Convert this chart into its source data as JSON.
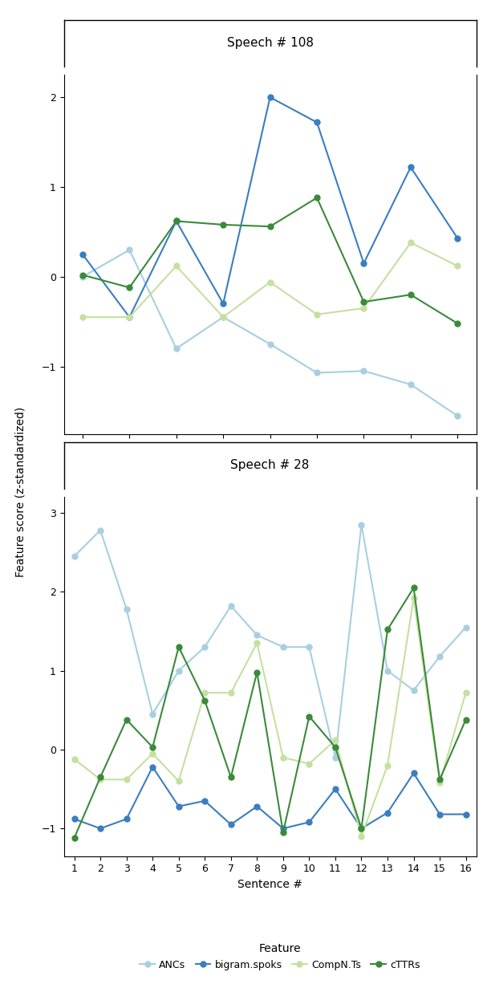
{
  "speech108": {
    "title": "Speech # 108",
    "x": [
      1,
      2,
      3,
      4,
      5,
      6,
      7,
      8,
      9
    ],
    "ANCs": [
      0.0,
      0.3,
      -0.8,
      -0.45,
      -0.75,
      -1.07,
      -1.05,
      -1.2,
      -1.55
    ],
    "bigram_spoks": [
      0.25,
      -0.45,
      0.62,
      -0.3,
      2.0,
      1.72,
      0.15,
      1.22,
      0.43
    ],
    "CompN_Ts": [
      -0.45,
      -0.45,
      0.12,
      -0.45,
      -0.06,
      -0.42,
      -0.35,
      0.38,
      0.12
    ],
    "cTTRs": [
      0.02,
      -0.12,
      0.62,
      0.58,
      0.56,
      0.88,
      -0.28,
      -0.2,
      -0.52
    ],
    "ylim": [
      -1.75,
      2.25
    ],
    "yticks": [
      -1,
      0,
      1,
      2
    ],
    "xticks": [
      1,
      2,
      3,
      4,
      5,
      6,
      7,
      8,
      9
    ]
  },
  "speech28": {
    "title": "Speech # 28",
    "x": [
      1,
      2,
      3,
      4,
      5,
      6,
      7,
      8,
      9,
      10,
      11,
      12,
      13,
      14,
      15,
      16
    ],
    "ANCs": [
      2.45,
      2.78,
      1.78,
      0.45,
      1.0,
      1.3,
      1.82,
      1.45,
      1.3,
      1.3,
      -0.1,
      2.85,
      1.0,
      0.75,
      1.18,
      1.55
    ],
    "bigram_spoks": [
      -0.88,
      -1.0,
      -0.88,
      -0.22,
      -0.72,
      -0.65,
      -0.95,
      -0.72,
      -1.0,
      -0.92,
      -0.5,
      -1.0,
      -0.8,
      -0.3,
      -0.82,
      -0.82
    ],
    "CompN_Ts": [
      -0.12,
      -0.38,
      -0.38,
      -0.05,
      -0.4,
      0.72,
      0.72,
      1.35,
      -0.1,
      -0.18,
      0.12,
      -1.1,
      -0.2,
      1.92,
      -0.42,
      0.72
    ],
    "cTTRs": [
      -1.12,
      -0.35,
      0.38,
      0.03,
      1.3,
      0.62,
      -0.35,
      0.98,
      -1.05,
      0.42,
      0.03,
      -1.0,
      1.52,
      2.05,
      -0.38,
      0.38
    ],
    "ylim": [
      -1.35,
      3.2
    ],
    "yticks": [
      -1,
      0,
      1,
      2,
      3
    ],
    "xticks": [
      1,
      2,
      3,
      4,
      5,
      6,
      7,
      8,
      9,
      10,
      11,
      12,
      13,
      14,
      15,
      16
    ]
  },
  "colors": {
    "ANCs": "#a8cfe0",
    "bigram_spoks": "#3a7ebf",
    "CompN_Ts": "#c5e0a0",
    "cTTRs": "#3a8a3a"
  },
  "ylabel": "Feature score (z-standardized)",
  "xlabel": "Sentence #",
  "legend_labels": [
    "ANCs",
    "bigram.spoks",
    "CompN.Ts",
    "cTTRs"
  ],
  "legend_keys": [
    "ANCs",
    "bigram_spoks",
    "CompN_Ts",
    "cTTRs"
  ]
}
